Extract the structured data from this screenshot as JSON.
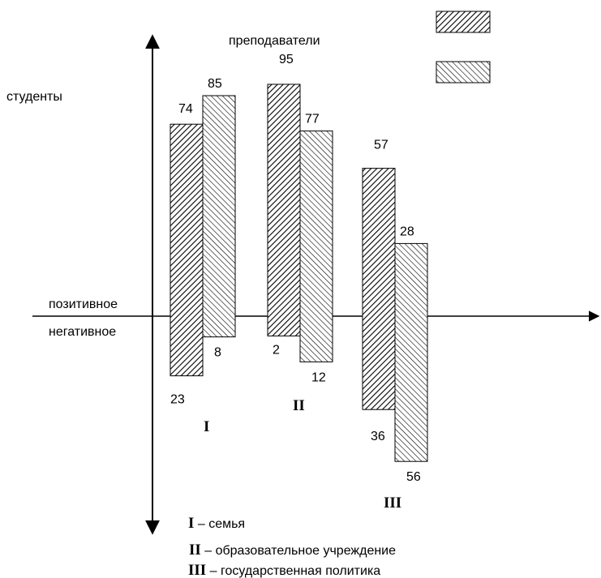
{
  "chart_data": {
    "type": "bar",
    "categories": [
      "I",
      "II",
      "III"
    ],
    "series": [
      {
        "name": "преподаватели",
        "positive": [
          74,
          95,
          57
        ],
        "negative": [
          23,
          2,
          36
        ],
        "pattern": "dense-hatch"
      },
      {
        "name": "студенты",
        "positive": [
          85,
          77,
          28
        ],
        "negative": [
          8,
          12,
          56
        ],
        "pattern": "light-hatch"
      }
    ],
    "y_positive_label": "позитивное",
    "y_negative_label": "негативное",
    "legend": {
      "placement": "top-right",
      "entries": [
        {
          "series": "преподаватели",
          "label": ""
        },
        {
          "series": "студенты",
          "label": ""
        }
      ]
    },
    "category_key": [
      {
        "roman": "I",
        "text": " – семья"
      },
      {
        "roman": "II",
        "text": " – образовательное учреждение"
      },
      {
        "roman": "III",
        "text": " – государственная политика"
      }
    ],
    "colors": {
      "ink": "#000000",
      "fill": "#ffffff"
    },
    "grid": false
  }
}
